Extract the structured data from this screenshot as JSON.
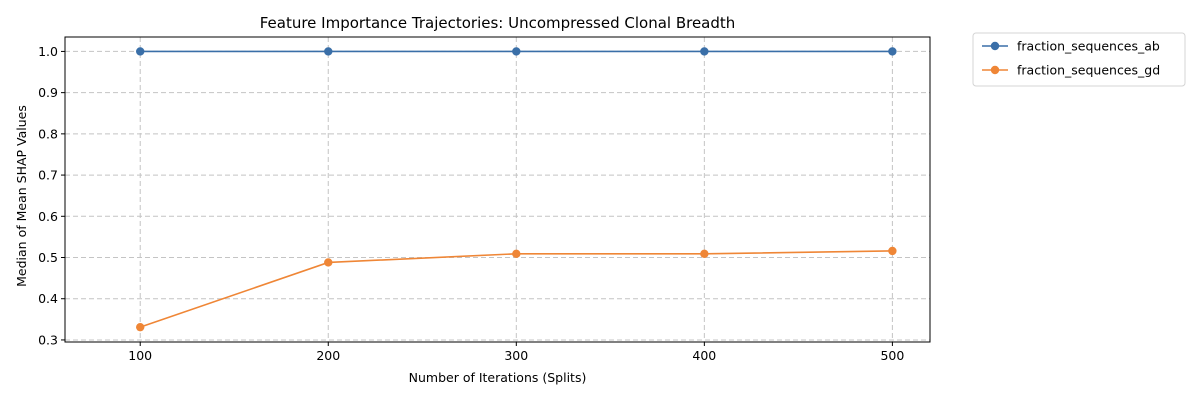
{
  "chart_data": {
    "type": "line",
    "title": "Feature Importance Trajectories: Uncompressed Clonal Breadth",
    "xlabel": "Number of Iterations (Splits)",
    "ylabel": "Median of Mean SHAP Values",
    "x": [
      100,
      200,
      300,
      400,
      500
    ],
    "xticks": [
      100,
      200,
      300,
      400,
      500
    ],
    "yticks": [
      0.3,
      0.4,
      0.5,
      0.6,
      0.7,
      0.8,
      0.9,
      1.0
    ],
    "ytick_labels": [
      "0.3",
      "0.4",
      "0.5",
      "0.6",
      "0.7",
      "0.8",
      "0.9",
      "1.0"
    ],
    "xlim": [
      60,
      520
    ],
    "ylim": [
      0.295,
      1.035
    ],
    "grid": true,
    "legend_position": "outside-top-right",
    "series": [
      {
        "name": "fraction_sequences_ab",
        "color": "#3a6fa8",
        "values": [
          1.0,
          1.0,
          1.0,
          1.0,
          1.0
        ]
      },
      {
        "name": "fraction_sequences_gd",
        "color": "#ef8636",
        "values": [
          0.331,
          0.488,
          0.509,
          0.509,
          0.516
        ]
      }
    ]
  }
}
